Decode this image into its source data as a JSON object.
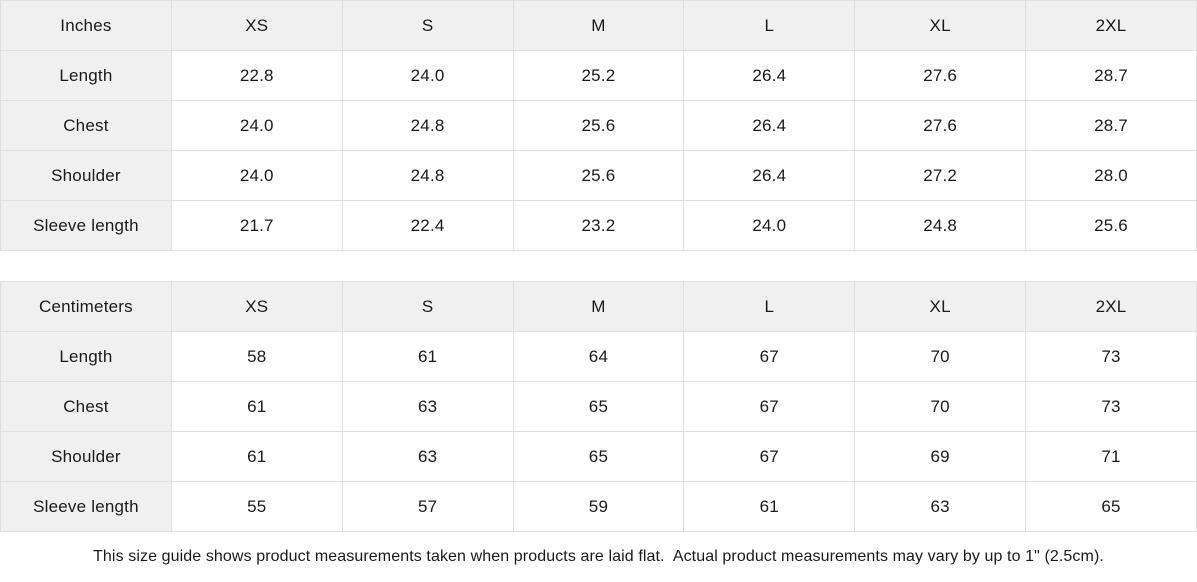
{
  "colors": {
    "header_bg": "#f0f0f0",
    "border": "#e0e0e0",
    "text": "#1a1a1a",
    "cell_bg": "#ffffff"
  },
  "tables": [
    {
      "unit_label": "Inches",
      "sizes": [
        "XS",
        "S",
        "M",
        "L",
        "XL",
        "2XL"
      ],
      "rows": [
        {
          "label": "Length",
          "values": [
            "22.8",
            "24.0",
            "25.2",
            "26.4",
            "27.6",
            "28.7"
          ]
        },
        {
          "label": "Chest",
          "values": [
            "24.0",
            "24.8",
            "25.6",
            "26.4",
            "27.6",
            "28.7"
          ]
        },
        {
          "label": "Shoulder",
          "values": [
            "24.0",
            "24.8",
            "25.6",
            "26.4",
            "27.2",
            "28.0"
          ]
        },
        {
          "label": "Sleeve length",
          "values": [
            "21.7",
            "22.4",
            "23.2",
            "24.0",
            "24.8",
            "25.6"
          ]
        }
      ]
    },
    {
      "unit_label": "Centimeters",
      "sizes": [
        "XS",
        "S",
        "M",
        "L",
        "XL",
        "2XL"
      ],
      "rows": [
        {
          "label": "Length",
          "values": [
            "58",
            "61",
            "64",
            "67",
            "70",
            "73"
          ]
        },
        {
          "label": "Chest",
          "values": [
            "61",
            "63",
            "65",
            "67",
            "70",
            "73"
          ]
        },
        {
          "label": "Shoulder",
          "values": [
            "61",
            "63",
            "65",
            "67",
            "69",
            "71"
          ]
        },
        {
          "label": "Sleeve length",
          "values": [
            "55",
            "57",
            "59",
            "61",
            "63",
            "65"
          ]
        }
      ]
    }
  ],
  "footer": {
    "note": "This size guide shows product measurements taken when products are laid flat.  Actual product measurements may vary by up to 1\" (2.5cm)."
  }
}
